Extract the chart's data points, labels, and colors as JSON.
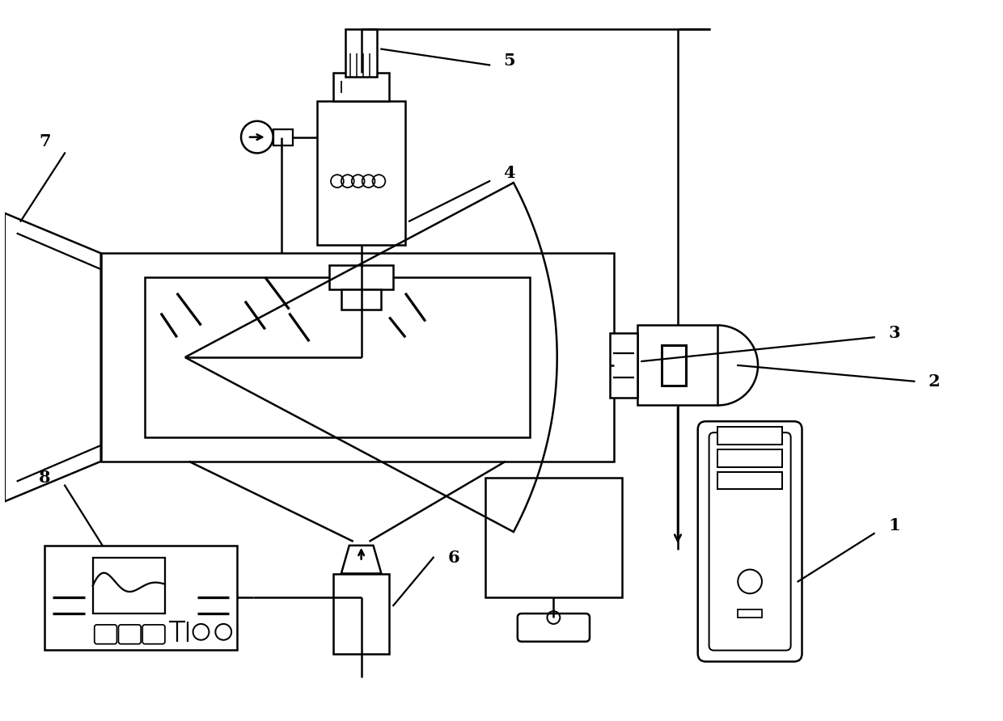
{
  "bg_color": "#ffffff",
  "line_color": "#000000",
  "lw": 1.8,
  "fig_width": 12.4,
  "fig_height": 8.92
}
